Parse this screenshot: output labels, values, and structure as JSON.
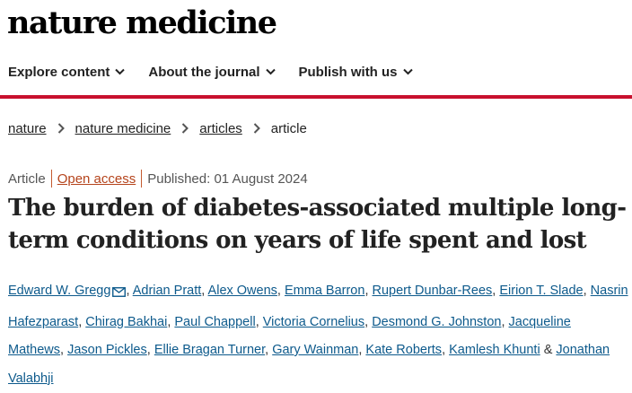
{
  "header": {
    "logo_text": "nature medicine"
  },
  "nav": {
    "items": [
      {
        "label": "Explore content"
      },
      {
        "label": "About the journal"
      },
      {
        "label": "Publish with us"
      }
    ]
  },
  "breadcrumb": {
    "items": [
      "nature",
      "nature medicine",
      "articles"
    ],
    "current": "article"
  },
  "article": {
    "type": "Article",
    "access": "Open access",
    "published": "Published: 01 August 2024",
    "title": "The burden of diabetes-associated multiple long-term conditions on years of life spent and lost",
    "authors": [
      "Edward W. Gregg",
      "Adrian Pratt",
      "Alex Owens",
      "Emma Barron",
      "Rupert Dunbar-Rees",
      "Eirion T. Slade",
      "Nasrin Hafezparast",
      "Chirag Bakhai",
      "Paul Chappell",
      "Victoria Cornelius",
      "Desmond G. Johnston",
      "Jacqueline Mathews",
      "Jason Pickles",
      "Ellie Bragan Turner",
      "Gary Wainman",
      "Kate Roberts",
      "Kamlesh Khunti",
      "Jonathan Valabhji"
    ],
    "author_conjunction": "&"
  },
  "colors": {
    "brand_red": "#c8102e",
    "link_blue": "#0d5a8c",
    "open_access_orange": "#b5441c"
  },
  "icons": {
    "nav_chevron": "chevron-down-icon",
    "breadcrumb_separator": "chevron-right-icon",
    "corresponding_author": "envelope-icon"
  }
}
